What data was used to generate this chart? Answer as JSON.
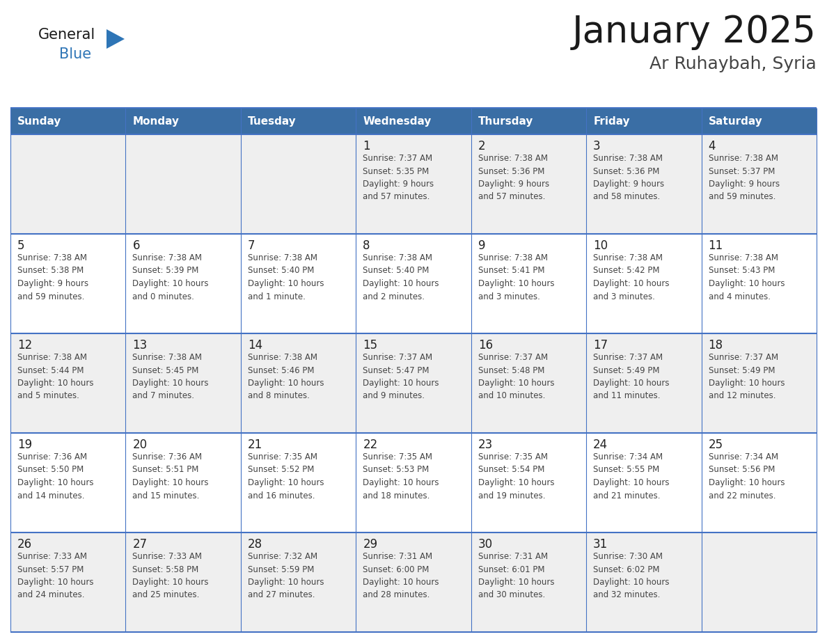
{
  "title": "January 2025",
  "subtitle": "Ar Ruhaybah, Syria",
  "days_of_week": [
    "Sunday",
    "Monday",
    "Tuesday",
    "Wednesday",
    "Thursday",
    "Friday",
    "Saturday"
  ],
  "header_bg": "#3A6EA5",
  "header_text": "#FFFFFF",
  "row_bg_odd": "#EFEFEF",
  "row_bg_even": "#FFFFFF",
  "grid_line_color": "#4472C4",
  "day_number_color": "#222222",
  "cell_text_color": "#444444",
  "title_color": "#1a1a1a",
  "subtitle_color": "#444444",
  "logo_general_color": "#1a1a1a",
  "logo_blue_color": "#2E75B6",
  "logo_triangle_color": "#2E75B6",
  "calendar": [
    [
      {
        "day": "",
        "info": ""
      },
      {
        "day": "",
        "info": ""
      },
      {
        "day": "",
        "info": ""
      },
      {
        "day": "1",
        "info": "Sunrise: 7:37 AM\nSunset: 5:35 PM\nDaylight: 9 hours\nand 57 minutes."
      },
      {
        "day": "2",
        "info": "Sunrise: 7:38 AM\nSunset: 5:36 PM\nDaylight: 9 hours\nand 57 minutes."
      },
      {
        "day": "3",
        "info": "Sunrise: 7:38 AM\nSunset: 5:36 PM\nDaylight: 9 hours\nand 58 minutes."
      },
      {
        "day": "4",
        "info": "Sunrise: 7:38 AM\nSunset: 5:37 PM\nDaylight: 9 hours\nand 59 minutes."
      }
    ],
    [
      {
        "day": "5",
        "info": "Sunrise: 7:38 AM\nSunset: 5:38 PM\nDaylight: 9 hours\nand 59 minutes."
      },
      {
        "day": "6",
        "info": "Sunrise: 7:38 AM\nSunset: 5:39 PM\nDaylight: 10 hours\nand 0 minutes."
      },
      {
        "day": "7",
        "info": "Sunrise: 7:38 AM\nSunset: 5:40 PM\nDaylight: 10 hours\nand 1 minute."
      },
      {
        "day": "8",
        "info": "Sunrise: 7:38 AM\nSunset: 5:40 PM\nDaylight: 10 hours\nand 2 minutes."
      },
      {
        "day": "9",
        "info": "Sunrise: 7:38 AM\nSunset: 5:41 PM\nDaylight: 10 hours\nand 3 minutes."
      },
      {
        "day": "10",
        "info": "Sunrise: 7:38 AM\nSunset: 5:42 PM\nDaylight: 10 hours\nand 3 minutes."
      },
      {
        "day": "11",
        "info": "Sunrise: 7:38 AM\nSunset: 5:43 PM\nDaylight: 10 hours\nand 4 minutes."
      }
    ],
    [
      {
        "day": "12",
        "info": "Sunrise: 7:38 AM\nSunset: 5:44 PM\nDaylight: 10 hours\nand 5 minutes."
      },
      {
        "day": "13",
        "info": "Sunrise: 7:38 AM\nSunset: 5:45 PM\nDaylight: 10 hours\nand 7 minutes."
      },
      {
        "day": "14",
        "info": "Sunrise: 7:38 AM\nSunset: 5:46 PM\nDaylight: 10 hours\nand 8 minutes."
      },
      {
        "day": "15",
        "info": "Sunrise: 7:37 AM\nSunset: 5:47 PM\nDaylight: 10 hours\nand 9 minutes."
      },
      {
        "day": "16",
        "info": "Sunrise: 7:37 AM\nSunset: 5:48 PM\nDaylight: 10 hours\nand 10 minutes."
      },
      {
        "day": "17",
        "info": "Sunrise: 7:37 AM\nSunset: 5:49 PM\nDaylight: 10 hours\nand 11 minutes."
      },
      {
        "day": "18",
        "info": "Sunrise: 7:37 AM\nSunset: 5:49 PM\nDaylight: 10 hours\nand 12 minutes."
      }
    ],
    [
      {
        "day": "19",
        "info": "Sunrise: 7:36 AM\nSunset: 5:50 PM\nDaylight: 10 hours\nand 14 minutes."
      },
      {
        "day": "20",
        "info": "Sunrise: 7:36 AM\nSunset: 5:51 PM\nDaylight: 10 hours\nand 15 minutes."
      },
      {
        "day": "21",
        "info": "Sunrise: 7:35 AM\nSunset: 5:52 PM\nDaylight: 10 hours\nand 16 minutes."
      },
      {
        "day": "22",
        "info": "Sunrise: 7:35 AM\nSunset: 5:53 PM\nDaylight: 10 hours\nand 18 minutes."
      },
      {
        "day": "23",
        "info": "Sunrise: 7:35 AM\nSunset: 5:54 PM\nDaylight: 10 hours\nand 19 minutes."
      },
      {
        "day": "24",
        "info": "Sunrise: 7:34 AM\nSunset: 5:55 PM\nDaylight: 10 hours\nand 21 minutes."
      },
      {
        "day": "25",
        "info": "Sunrise: 7:34 AM\nSunset: 5:56 PM\nDaylight: 10 hours\nand 22 minutes."
      }
    ],
    [
      {
        "day": "26",
        "info": "Sunrise: 7:33 AM\nSunset: 5:57 PM\nDaylight: 10 hours\nand 24 minutes."
      },
      {
        "day": "27",
        "info": "Sunrise: 7:33 AM\nSunset: 5:58 PM\nDaylight: 10 hours\nand 25 minutes."
      },
      {
        "day": "28",
        "info": "Sunrise: 7:32 AM\nSunset: 5:59 PM\nDaylight: 10 hours\nand 27 minutes."
      },
      {
        "day": "29",
        "info": "Sunrise: 7:31 AM\nSunset: 6:00 PM\nDaylight: 10 hours\nand 28 minutes."
      },
      {
        "day": "30",
        "info": "Sunrise: 7:31 AM\nSunset: 6:01 PM\nDaylight: 10 hours\nand 30 minutes."
      },
      {
        "day": "31",
        "info": "Sunrise: 7:30 AM\nSunset: 6:02 PM\nDaylight: 10 hours\nand 32 minutes."
      },
      {
        "day": "",
        "info": ""
      }
    ]
  ]
}
